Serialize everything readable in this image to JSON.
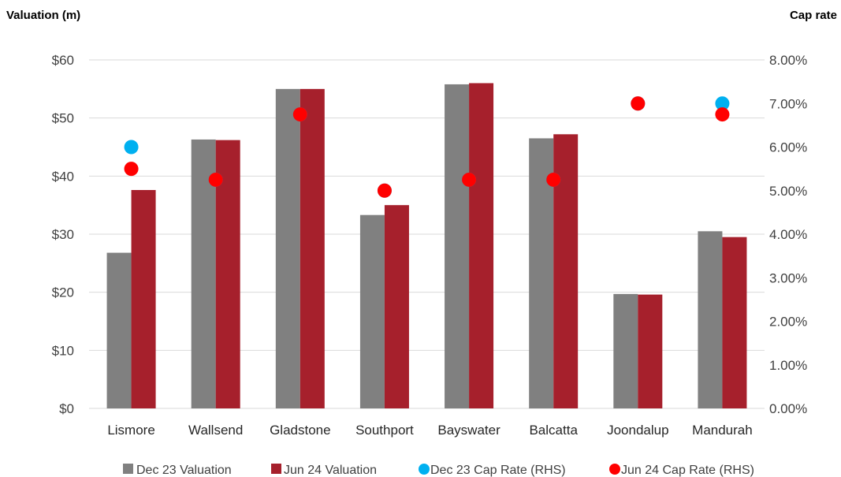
{
  "chart_data": {
    "type": "bar",
    "title": "",
    "ylabel": "Valuation (m)",
    "y2label": "Cap rate",
    "categories": [
      "Lismore",
      "Wallsend",
      "Gladstone",
      "Southport",
      "Bayswater",
      "Balcatta",
      "Joondalup",
      "Mandurah"
    ],
    "ylim": [
      0,
      60
    ],
    "y_ticks": [
      "$0",
      "$10",
      "$20",
      "$30",
      "$40",
      "$50",
      "$60"
    ],
    "y2lim": [
      0,
      8
    ],
    "y2_ticks": [
      "0.00%",
      "1.00%",
      "2.00%",
      "3.00%",
      "4.00%",
      "5.00%",
      "6.00%",
      "7.00%",
      "8.00%"
    ],
    "grid": true,
    "legend_position": "bottom",
    "series": [
      {
        "name": "Dec 23 Valuation",
        "kind": "bar",
        "axis": "left",
        "color": "#808080",
        "values": [
          26.8,
          46.3,
          55.0,
          33.3,
          55.8,
          46.5,
          19.7,
          30.5
        ]
      },
      {
        "name": "Jun 24 Valuation",
        "kind": "bar",
        "axis": "left",
        "color": "#A6202C",
        "values": [
          37.6,
          46.2,
          55.0,
          35.0,
          56.0,
          47.2,
          19.6,
          29.5
        ]
      },
      {
        "name": "Dec 23 Cap Rate (RHS)",
        "kind": "point",
        "axis": "right",
        "color": "#00B0F0",
        "values": [
          6.0,
          5.25,
          6.75,
          5.0,
          5.25,
          5.25,
          7.0,
          7.0
        ]
      },
      {
        "name": "Jun 24 Cap Rate (RHS)",
        "kind": "point",
        "axis": "right",
        "color": "#FF0000",
        "values": [
          5.5,
          5.25,
          6.75,
          5.0,
          5.25,
          5.25,
          7.0,
          6.75
        ]
      }
    ]
  }
}
